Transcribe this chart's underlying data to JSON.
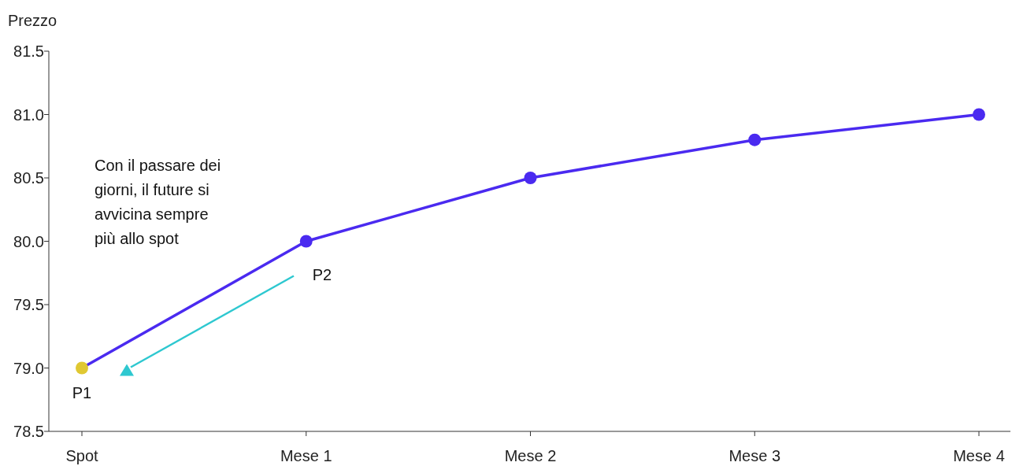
{
  "chart_data": {
    "type": "line",
    "ylabel": "Prezzo",
    "categories": [
      "Spot",
      "Mese 1",
      "Mese 2",
      "Mese 3",
      "Mese 4"
    ],
    "series": [
      {
        "color": "#4a2af0",
        "colors": [
          "#e0c832",
          "#4a2af0",
          "#4a2af0",
          "#4a2af0",
          "#4a2af0"
        ],
        "values": [
          79,
          80,
          80.5,
          80.8,
          81
        ]
      }
    ],
    "ylim": [
      78.5,
      81.5
    ],
    "yticks": [
      78.5,
      {
        "value": 79,
        "label": "79.0"
      },
      79.5,
      {
        "value": 80,
        "label": "80.0"
      },
      80.5,
      {
        "value": 81,
        "label": "81.0"
      },
      81.5
    ],
    "marker": "circle",
    "line_style": "solid",
    "grid": false,
    "annotations": [
      "Con il passare dei\ngiorni, il future si\navvicina sempre\npiù allo spot",
      {
        "text": "P1",
        "x": "Spot",
        "y": 79
      },
      {
        "text": "P2",
        "x": "Mese 1",
        "y": 80
      }
    ]
  }
}
